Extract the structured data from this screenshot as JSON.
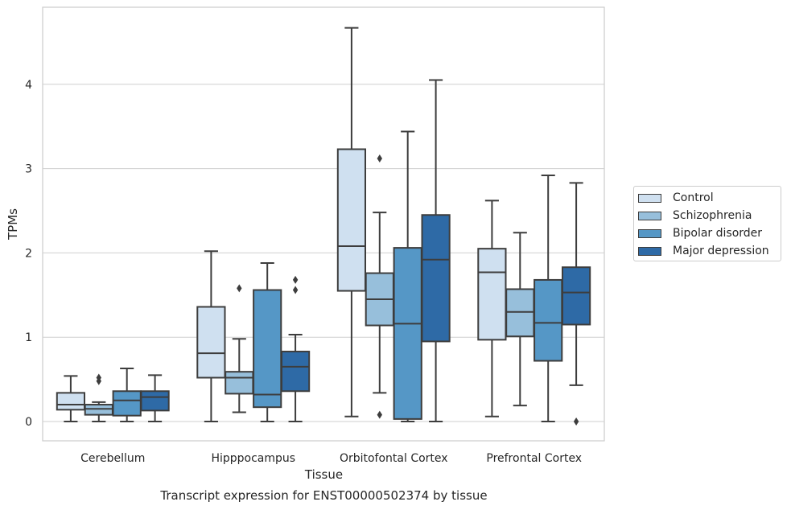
{
  "chart_data": {
    "type": "box",
    "title": "Transcript expression for ENST00000502374 by tissue",
    "xlabel": "Tissue",
    "ylabel": "TPMs",
    "ylim": [
      -0.23,
      4.9
    ],
    "yticks": [
      0,
      1,
      2,
      3,
      4
    ],
    "grid": "horizontal",
    "legend_position": "right",
    "categories": [
      "Cerebellum",
      "Hipppocampus",
      "Orbitofontal Cortex",
      "Prefrontal Cortex"
    ],
    "series": [
      {
        "name": "Control",
        "color": "#cfe0f0",
        "boxes": [
          {
            "whisker_low": 0.0,
            "q1": 0.14,
            "median": 0.2,
            "q3": 0.34,
            "whisker_high": 0.54,
            "outliers": []
          },
          {
            "whisker_low": 0.0,
            "q1": 0.52,
            "median": 0.81,
            "q3": 1.36,
            "whisker_high": 2.02,
            "outliers": []
          },
          {
            "whisker_low": 0.06,
            "q1": 1.55,
            "median": 2.08,
            "q3": 3.23,
            "whisker_high": 4.67,
            "outliers": []
          },
          {
            "whisker_low": 0.06,
            "q1": 0.97,
            "median": 1.77,
            "q3": 2.05,
            "whisker_high": 2.62,
            "outliers": []
          }
        ]
      },
      {
        "name": "Schizophrenia",
        "color": "#97bfdb",
        "boxes": [
          {
            "whisker_low": 0.0,
            "q1": 0.08,
            "median": 0.15,
            "q3": 0.2,
            "whisker_high": 0.23,
            "outliers": [
              0.48,
              0.52
            ]
          },
          {
            "whisker_low": 0.11,
            "q1": 0.33,
            "median": 0.52,
            "q3": 0.59,
            "whisker_high": 0.98,
            "outliers": [
              1.58
            ]
          },
          {
            "whisker_low": 0.34,
            "q1": 1.14,
            "median": 1.45,
            "q3": 1.76,
            "whisker_high": 2.48,
            "outliers": [
              3.12,
              0.08
            ]
          },
          {
            "whisker_low": 0.19,
            "q1": 1.01,
            "median": 1.3,
            "q3": 1.57,
            "whisker_high": 2.24,
            "outliers": []
          }
        ]
      },
      {
        "name": "Bipolar disorder",
        "color": "#5597c6",
        "boxes": [
          {
            "whisker_low": 0.0,
            "q1": 0.07,
            "median": 0.25,
            "q3": 0.36,
            "whisker_high": 0.63,
            "outliers": []
          },
          {
            "whisker_low": 0.0,
            "q1": 0.17,
            "median": 0.32,
            "q3": 1.56,
            "whisker_high": 1.88,
            "outliers": []
          },
          {
            "whisker_low": 0.0,
            "q1": 0.03,
            "median": 1.16,
            "q3": 2.06,
            "whisker_high": 3.44,
            "outliers": []
          },
          {
            "whisker_low": 0.0,
            "q1": 0.72,
            "median": 1.17,
            "q3": 1.68,
            "whisker_high": 2.92,
            "outliers": []
          }
        ]
      },
      {
        "name": "Major depression",
        "color": "#2e6aa6",
        "boxes": [
          {
            "whisker_low": 0.0,
            "q1": 0.13,
            "median": 0.29,
            "q3": 0.36,
            "whisker_high": 0.55,
            "outliers": []
          },
          {
            "whisker_low": 0.0,
            "q1": 0.36,
            "median": 0.65,
            "q3": 0.83,
            "whisker_high": 1.03,
            "outliers": [
              1.56,
              1.68
            ]
          },
          {
            "whisker_low": 0.0,
            "q1": 0.95,
            "median": 1.92,
            "q3": 2.45,
            "whisker_high": 4.05,
            "outliers": []
          },
          {
            "whisker_low": 0.43,
            "q1": 1.15,
            "median": 1.53,
            "q3": 1.83,
            "whisker_high": 2.83,
            "outliers": [
              0.0
            ]
          }
        ]
      }
    ]
  }
}
